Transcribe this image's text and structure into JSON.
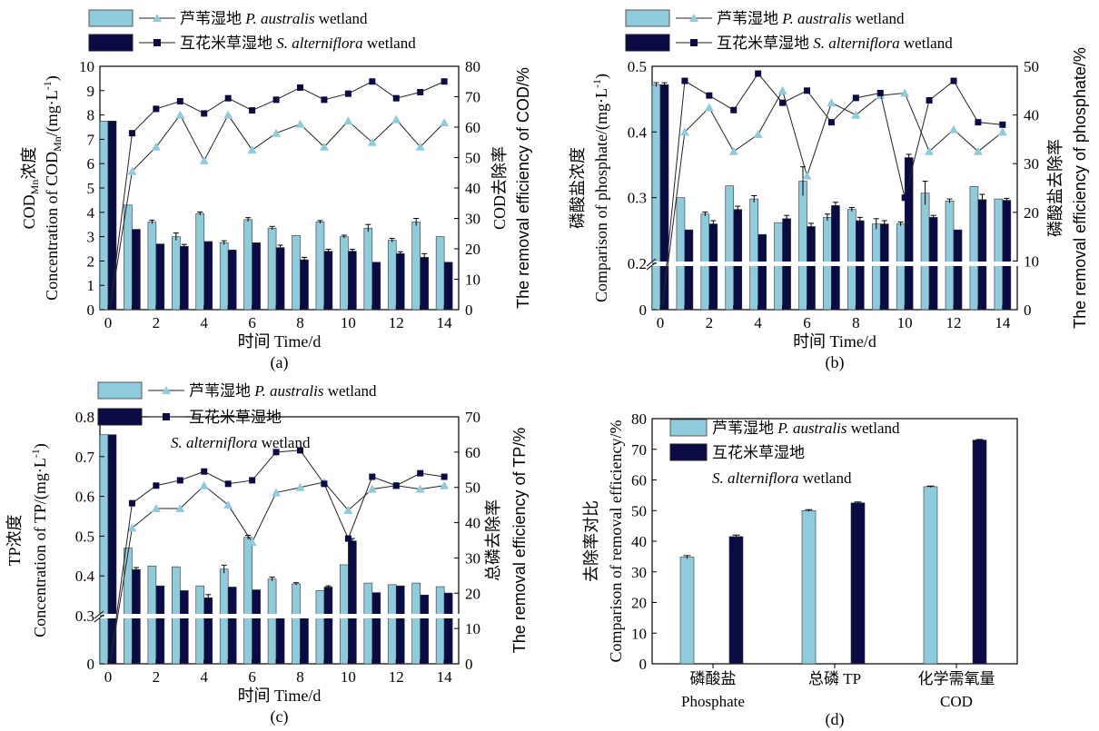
{
  "legend": {
    "pa": {
      "zh": "芦苇湿地 ",
      "sp": "P. australis",
      "tail": " wetland"
    },
    "sa": {
      "zh": "互花米草湿地 ",
      "sp": "S. alterniflora",
      "tail": " wetland"
    }
  },
  "colors": {
    "pa_bar": "#8ecbdd",
    "sa_bar": "#0a0a45",
    "pa_line": "#8ecbdd",
    "sa_line": "#0a0a45"
  },
  "chart_data": [
    {
      "id": "a",
      "type": "bar",
      "panel_label": "(a)",
      "xlabel": "时间 Time/d",
      "ylabel_zh": "COD",
      "ylabel_zh_sub": "Mn",
      "ylabel_zh_tail": "浓度",
      "ylabel_en": "Concentration of COD",
      "ylabel_en_sub": "Mn",
      "ylabel_en_tail": "/(mg·L",
      "ylabel_en_sup": "-1",
      "ylabel_en_end": ")",
      "y2label_zh": "COD去除率",
      "y2label_en": "The removal efficiency of COD/%",
      "ylim": [
        0,
        10
      ],
      "y2lim": [
        0,
        80
      ],
      "yticks": [
        "0",
        "1",
        "2",
        "3",
        "4",
        "5",
        "6",
        "7",
        "8",
        "9",
        "10"
      ],
      "y2ticks": [
        "0",
        "10",
        "20",
        "30",
        "40",
        "50",
        "60",
        "70",
        "80"
      ],
      "xticks": [
        "0",
        "2",
        "4",
        "6",
        "8",
        "10",
        "12",
        "14"
      ],
      "x": [
        0,
        1,
        2,
        3,
        4,
        5,
        6,
        7,
        8,
        9,
        10,
        11,
        12,
        13,
        14
      ],
      "bars": [
        {
          "series": "pa",
          "values": [
            7.75,
            4.3,
            3.6,
            3.0,
            3.95,
            2.75,
            3.7,
            3.35,
            3.05,
            3.6,
            3.0,
            3.35,
            2.85,
            3.6,
            3.0
          ],
          "err": [
            0,
            0,
            0.08,
            0.15,
            0.06,
            0.08,
            0.08,
            0.07,
            0,
            0.06,
            0.06,
            0.15,
            0.08,
            0.15,
            0
          ]
        },
        {
          "series": "sa",
          "values": [
            7.75,
            3.3,
            2.7,
            2.6,
            2.8,
            2.45,
            2.75,
            2.55,
            2.05,
            2.4,
            2.4,
            1.95,
            2.3,
            2.15,
            1.95
          ],
          "err": [
            0,
            0,
            0,
            0.08,
            0,
            0,
            0,
            0.1,
            0.1,
            0.08,
            0.08,
            0,
            0.08,
            0.15,
            0
          ]
        }
      ],
      "lines": [
        {
          "series": "pa",
          "values": [
            null,
            45.5,
            53.5,
            64,
            49,
            64,
            52.5,
            58,
            61,
            53.5,
            62,
            55,
            62.5,
            53.5,
            61.5
          ]
        },
        {
          "series": "sa",
          "values": [
            null,
            58,
            66,
            68.5,
            64.5,
            69.5,
            65.5,
            69,
            73,
            69,
            71,
            75,
            69.5,
            71.5,
            75
          ]
        }
      ]
    },
    {
      "id": "b",
      "type": "bar",
      "panel_label": "(b)",
      "xlabel": "时间 Time/d",
      "ylabel_zh": "磷酸盐浓度",
      "ylabel_en": "Comparison of phosphate/(mg·L",
      "ylabel_en_sup": "-1",
      "ylabel_en_end": ")",
      "y2label_zh": "磷酸盐去除率",
      "y2label_en": "The removal efficiency of phosphate/%",
      "ylim": [
        0,
        0.5
      ],
      "y2lim": [
        0,
        50
      ],
      "axis_break": "0.2",
      "yticks": [
        "0",
        "0.2",
        "0.3",
        "0.4",
        "0.5"
      ],
      "y2ticks": [
        "0",
        "10",
        "20",
        "30",
        "40",
        "50"
      ],
      "xticks": [
        "0",
        "2",
        "4",
        "6",
        "8",
        "10",
        "12",
        "14"
      ],
      "x": [
        0,
        1,
        2,
        3,
        4,
        5,
        6,
        7,
        8,
        9,
        10,
        11,
        12,
        13,
        14
      ],
      "bars": [
        {
          "series": "pa",
          "values": [
            0.472,
            0.3,
            0.275,
            0.318,
            0.298,
            0.262,
            0.325,
            0.27,
            0.282,
            0.26,
            0.26,
            0.307,
            0.295,
            0.317,
            0.298
          ],
          "err": [
            0.003,
            0,
            0.003,
            0,
            0.005,
            0,
            0.022,
            0.005,
            0.003,
            0.008,
            0.003,
            0.018,
            0.003,
            0,
            0
          ]
        },
        {
          "series": "sa",
          "values": [
            0.472,
            0.251,
            0.26,
            0.282,
            0.244,
            0.268,
            0.256,
            0.288,
            0.265,
            0.26,
            0.361,
            0.27,
            0.251,
            0.297,
            0.296
          ],
          "err": [
            0.003,
            0,
            0.005,
            0.005,
            0,
            0.005,
            0.005,
            0.005,
            0.005,
            0.005,
            0.005,
            0.003,
            0,
            0.008,
            0.003
          ]
        }
      ],
      "lines": [
        {
          "series": "pa",
          "values": [
            null,
            36.5,
            41.5,
            32.5,
            36,
            45,
            27.5,
            42.5,
            40,
            44,
            44.5,
            32.5,
            37,
            32.5,
            36.5
          ]
        },
        {
          "series": "sa",
          "values": [
            null,
            47,
            44,
            41,
            48.5,
            42.5,
            45,
            38.5,
            43.5,
            44.5,
            23,
            43,
            47,
            38.5,
            38
          ]
        }
      ]
    },
    {
      "id": "c",
      "type": "bar",
      "panel_label": "(c)",
      "xlabel": "时间 Time/d",
      "ylabel_zh": "TP浓度",
      "ylabel_en": "Concentration of TP/(mg·L",
      "ylabel_en_sup": "-1",
      "ylabel_en_end": ")",
      "y2label_zh": "总磷去除率",
      "y2label_en": "The removal efficiency of  TP/%",
      "ylim": [
        0,
        0.8
      ],
      "y2lim": [
        0,
        70
      ],
      "axis_break": "0.3",
      "yticks": [
        "0",
        "0.3",
        "0.4",
        "0.5",
        "0.6",
        "0.7",
        "0.8"
      ],
      "y2ticks": [
        "0",
        "10",
        "20",
        "30",
        "40",
        "50",
        "60",
        "70"
      ],
      "xticks": [
        "0",
        "2",
        "4",
        "6",
        "8",
        "10",
        "12",
        "14"
      ],
      "x": [
        0,
        1,
        2,
        3,
        4,
        5,
        6,
        7,
        8,
        9,
        10,
        11,
        12,
        13,
        14
      ],
      "bars": [
        {
          "series": "pa",
          "values": [
            0.755,
            0.47,
            0.425,
            0.423,
            0.375,
            0.417,
            0.497,
            0.392,
            0.38,
            0.363,
            0.428,
            0.382,
            0.378,
            0.382,
            0.373
          ],
          "err": [
            0,
            0,
            0,
            0,
            0,
            0.01,
            0.005,
            0.005,
            0.003,
            0,
            0,
            0,
            0,
            0,
            0
          ]
        },
        {
          "series": "sa",
          "values": [
            0.755,
            0.416,
            0.375,
            0.363,
            0.345,
            0.372,
            0.365,
            0.302,
            0.3,
            0.372,
            0.488,
            0.358,
            0.375,
            0.352,
            0.357
          ],
          "err": [
            0,
            0.005,
            0,
            0,
            0.008,
            0,
            0,
            0,
            0.003,
            0.003,
            0.006,
            0,
            0,
            0,
            0
          ]
        }
      ],
      "lines": [
        {
          "series": "pa",
          "values": [
            null,
            38.5,
            44,
            44,
            50.5,
            45,
            34.5,
            48.5,
            50,
            51.5,
            43.5,
            49.5,
            50.5,
            49.5,
            50.5
          ]
        },
        {
          "series": "sa",
          "values": [
            null,
            45.5,
            50.5,
            52,
            54.5,
            51,
            52,
            60,
            60.5,
            51,
            35.5,
            53,
            50.5,
            54,
            53
          ]
        }
      ]
    },
    {
      "id": "d",
      "type": "bar",
      "panel_label": "(d)",
      "ylabel_zh": "去除率对比",
      "ylabel_en": "Comparison of removal efficiency/%",
      "ylim": [
        0,
        80
      ],
      "yticks": [
        "0",
        "10",
        "20",
        "30",
        "40",
        "50",
        "60",
        "70",
        "80"
      ],
      "categories": [
        {
          "zh": "磷酸盐",
          "en": "Phosphate"
        },
        {
          "zh": "总磷 TP",
          "en": ""
        },
        {
          "zh": "化学需氧量",
          "en": "COD"
        }
      ],
      "bars": [
        {
          "series": "pa",
          "values": [
            34.8,
            50,
            57.8
          ],
          "err": [
            0.5,
            0.3,
            0.2
          ]
        },
        {
          "series": "sa",
          "values": [
            41.5,
            52.5,
            73
          ],
          "err": [
            0.5,
            0.3,
            0.2
          ]
        }
      ]
    }
  ]
}
